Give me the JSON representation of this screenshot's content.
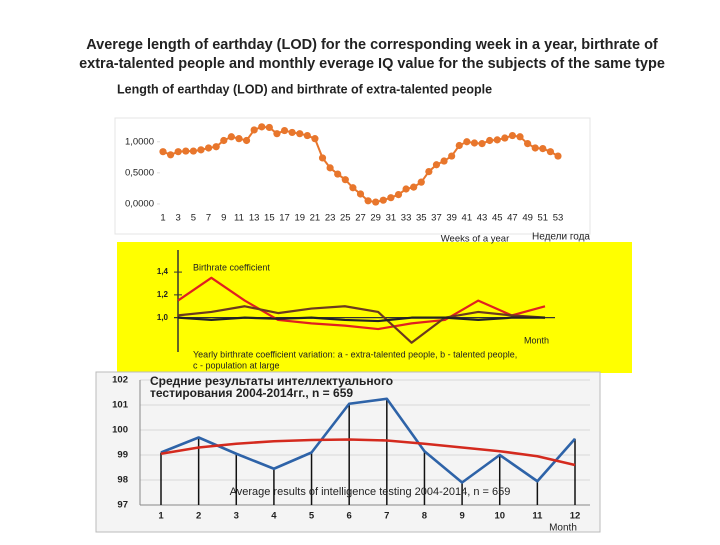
{
  "header": {
    "title_lines": [
      "Averege length of earthday (LOD) for the corresponding week in a year, birthrate of",
      "extra-talented people  and monthly everage IQ value for the subjects of the same type"
    ]
  },
  "chart_data": [
    {
      "type": "line",
      "title": "Length of earthday (LOD) and birthrate of extra-talented people",
      "xlabel": "Weeks of a year",
      "xlabel_alt": "Недели года",
      "categories": [
        1,
        null,
        3,
        null,
        5,
        null,
        7,
        null,
        9,
        null,
        11,
        null,
        13,
        null,
        15,
        null,
        17,
        null,
        19,
        null,
        21,
        null,
        23,
        null,
        25,
        null,
        27,
        null,
        29,
        null,
        31,
        null,
        33,
        null,
        35,
        null,
        37,
        null,
        39,
        null,
        41,
        null,
        43,
        null,
        45,
        null,
        47,
        null,
        49,
        null,
        51,
        null,
        53
      ],
      "series": [
        {
          "color": "#e8762c",
          "values": [
            0.84,
            0.79,
            0.84,
            0.85,
            0.85,
            0.87,
            0.9,
            0.92,
            1.02,
            1.08,
            1.05,
            1.02,
            1.19,
            1.24,
            1.23,
            1.13,
            1.18,
            1.15,
            1.13,
            1.1,
            1.05,
            0.74,
            0.58,
            0.48,
            0.39,
            0.26,
            0.16,
            0.05,
            0.03,
            0.06,
            0.1,
            0.15,
            0.24,
            0.27,
            0.35,
            0.52,
            0.63,
            0.69,
            0.77,
            0.94,
            1.0,
            0.98,
            0.97,
            1.02,
            1.03,
            1.06,
            1.1,
            1.08,
            0.97,
            0.9,
            0.89,
            0.84,
            0.77
          ]
        }
      ],
      "ylim": [
        -0.13,
        1.35
      ],
      "yticks": [
        {
          "value": 0,
          "label": "0,0000"
        },
        {
          "value": 0.5,
          "label": "0,5000"
        },
        {
          "value": 1,
          "label": "1,0000"
        }
      ],
      "grid": false
    },
    {
      "type": "line",
      "ylabel": "Birthrate coefficient",
      "xlabel": "Month",
      "note_lines": [
        "Yearly birthrate coefficient variation: a - extra-talented people, b - talented people,",
        "c - population at large"
      ],
      "x": [
        1,
        2,
        3,
        4,
        5,
        6,
        7,
        8,
        9,
        10,
        11,
        12
      ],
      "series": [
        {
          "color": "#e02020",
          "values": [
            1.15,
            1.35,
            1.15,
            0.98,
            0.95,
            0.93,
            0.9,
            0.95,
            0.98,
            1.15,
            1.02,
            1.1
          ]
        },
        {
          "color": "#6b3a1e",
          "values": [
            1.02,
            1.05,
            1.1,
            1.04,
            1.08,
            1.1,
            1.05,
            0.78,
            1.0,
            1.05,
            1.02,
            1.0
          ]
        },
        {
          "color": "#222222",
          "values": [
            1.0,
            0.98,
            1.0,
            0.99,
            1.0,
            0.98,
            0.97,
            1.0,
            1.0,
            0.98,
            1.0,
            1.0
          ]
        }
      ],
      "xlim": [
        1,
        12
      ],
      "ylim": [
        0.76,
        1.55
      ],
      "yticks": [
        {
          "value": 1.0,
          "label": "1,0"
        },
        {
          "value": 1.2,
          "label": "1,2"
        },
        {
          "value": 1.4,
          "label": "1,4"
        }
      ],
      "background": "#ffff00"
    },
    {
      "type": "line",
      "title_lines": [
        "Средние результаты интеллектуального",
        "тестирования 2004-2014гг., n = 659"
      ],
      "annotation": "Average results of intelligence testing 2004-2014, n = 659",
      "xlabel": "Month",
      "categories": [
        1,
        2,
        3,
        4,
        5,
        6,
        7,
        8,
        9,
        10,
        11,
        12
      ],
      "series": [
        {
          "color": "#2e63a8",
          "values": [
            99.1,
            99.7,
            99.05,
            98.45,
            99.1,
            101.05,
            101.25,
            99.15,
            97.9,
            99.0,
            97.95,
            99.65
          ],
          "droplines": true
        },
        {
          "color": "#d42a1e",
          "values": [
            99.05,
            99.3,
            99.45,
            99.55,
            99.6,
            99.62,
            99.58,
            99.45,
            99.3,
            99.15,
            98.95,
            98.6
          ]
        }
      ],
      "ylim": [
        97,
        102
      ],
      "yticks": [
        97,
        98,
        99,
        100,
        101,
        102
      ],
      "grid": true
    }
  ]
}
